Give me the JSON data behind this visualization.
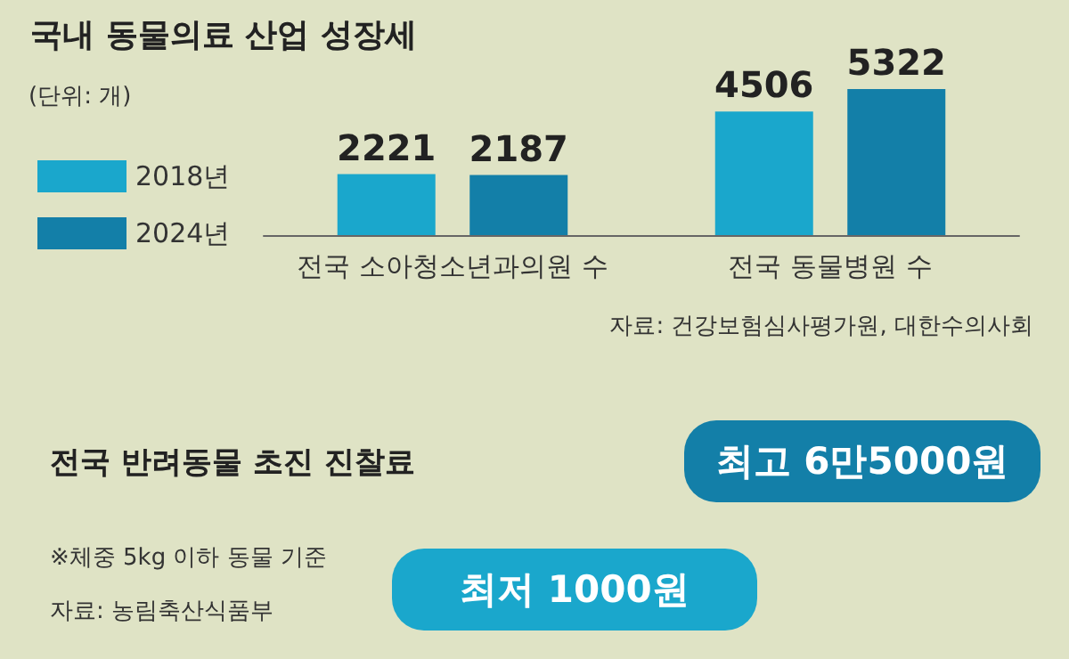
{
  "chart_data": [
    {
      "type": "bar",
      "title": "국내 동물의료 산업 성장세",
      "ylabel": "(단위: 개)",
      "categories": [
        "전국 소아청소년과의원 수",
        "전국 동물병원 수"
      ],
      "series": [
        {
          "name": "2018년",
          "color": "#1aa7cc",
          "values": [
            2221,
            4506
          ]
        },
        {
          "name": "2024년",
          "color": "#137fa8",
          "values": [
            2187,
            5322
          ]
        }
      ],
      "data_labels": true,
      "legend": "left",
      "annotations": [
        "자료: 건강보험심사평가원, 대한수의사회"
      ]
    },
    {
      "type": "other",
      "title": "전국 반려동물 초진 진찰료",
      "annotations": [
        "※체중 5kg 이하 동물 기준",
        "자료: 농림축산식품부",
        "최고  6만5000원",
        "최저 1000원"
      ]
    }
  ]
}
